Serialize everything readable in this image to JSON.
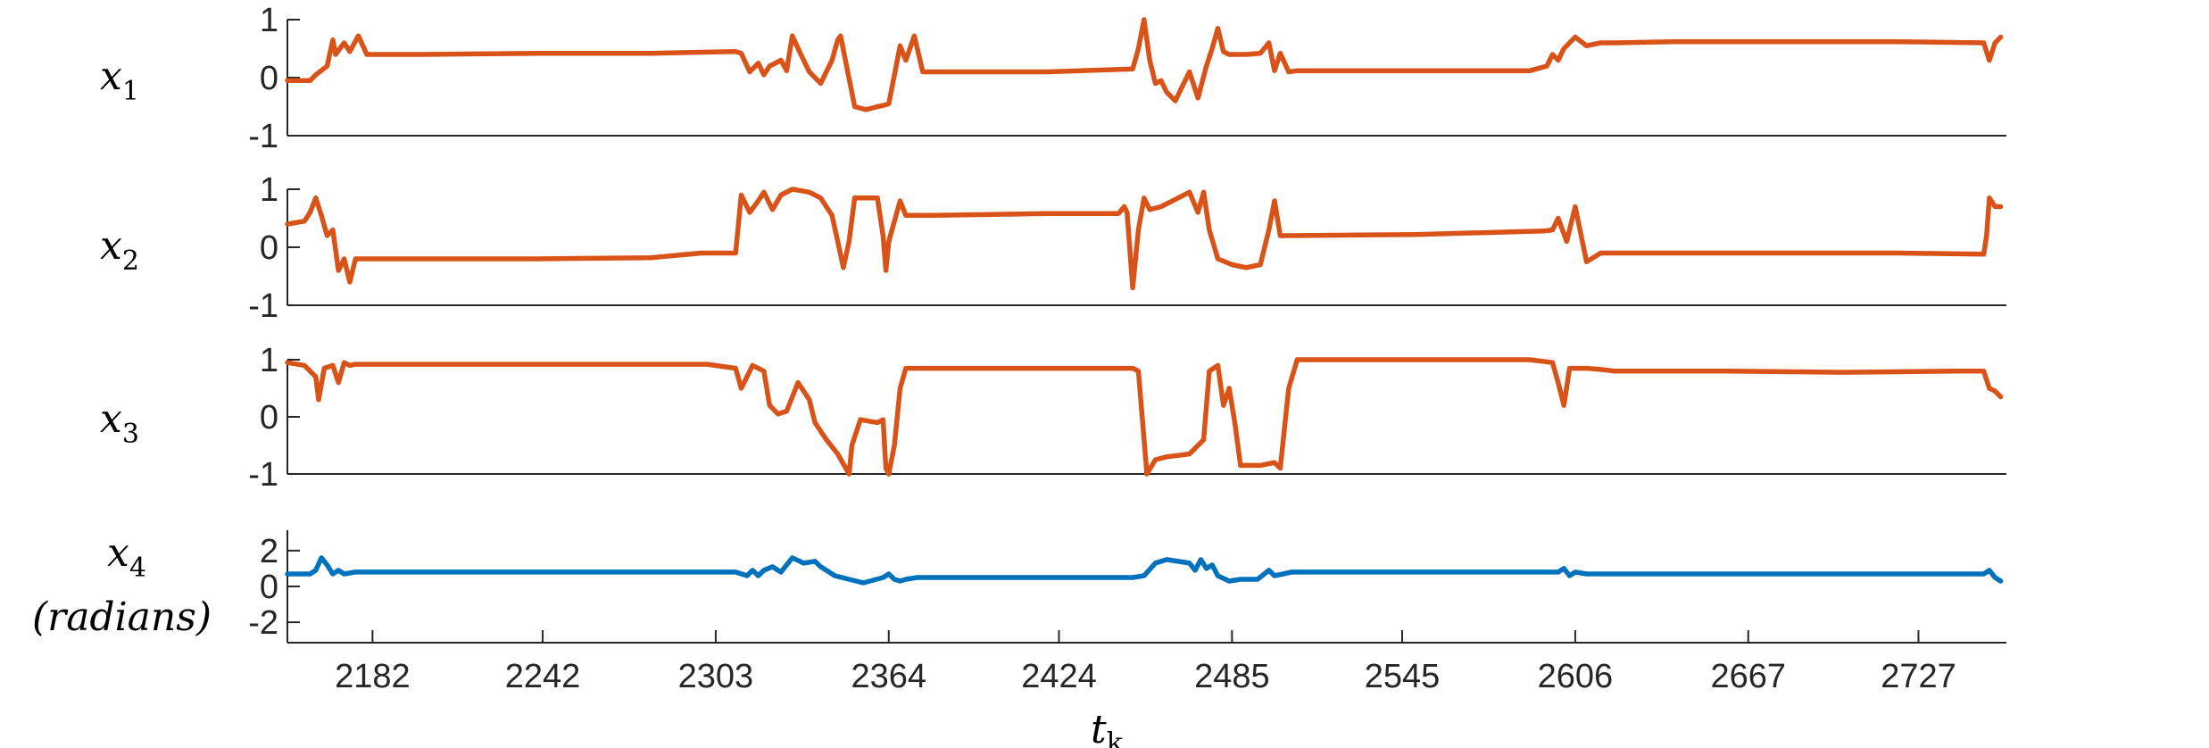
{
  "chart_data": [
    {
      "type": "line",
      "panel": "x1",
      "ylabel": "x",
      "ylabel_sub": "1",
      "ylim": [
        -1,
        1
      ],
      "yticks": [
        1,
        0,
        -1
      ],
      "ytick_labels": [
        "1",
        "0",
        "-1"
      ],
      "xlim": [
        2152,
        2758
      ],
      "color": "#D95319",
      "series": [
        {
          "x": [
            2152,
            2160,
            2162,
            2166,
            2168,
            2169,
            2172,
            2174,
            2177,
            2180,
            2200,
            2240,
            2280,
            2310,
            2312,
            2315,
            2318,
            2320,
            2322,
            2326,
            2328,
            2330,
            2333,
            2336,
            2340,
            2344,
            2346,
            2347,
            2352,
            2356,
            2360,
            2362,
            2364,
            2368,
            2370,
            2373,
            2376,
            2380,
            2420,
            2450,
            2452,
            2454,
            2456,
            2458,
            2460,
            2462,
            2465,
            2467,
            2470,
            2473,
            2476,
            2478,
            2480,
            2482,
            2484,
            2485,
            2490,
            2495,
            2498,
            2500,
            2502,
            2505,
            2508,
            2550,
            2590,
            2596,
            2598,
            2600,
            2602,
            2606,
            2610,
            2615,
            2620,
            2640,
            2680,
            2720,
            2750,
            2752,
            2754,
            2756
          ],
          "y": [
            -0.05,
            -0.05,
            0.05,
            0.2,
            0.65,
            0.4,
            0.6,
            0.45,
            0.72,
            0.4,
            0.4,
            0.42,
            0.42,
            0.45,
            0.42,
            0.1,
            0.25,
            0.05,
            0.2,
            0.3,
            0.12,
            0.72,
            0.4,
            0.1,
            -0.1,
            0.3,
            0.65,
            0.72,
            -0.5,
            -0.55,
            -0.5,
            -0.48,
            -0.45,
            0.55,
            0.3,
            0.72,
            0.1,
            0.1,
            0.1,
            0.15,
            0.5,
            1.0,
            0.3,
            -0.1,
            -0.05,
            -0.25,
            -0.4,
            -0.2,
            0.1,
            -0.35,
            0.2,
            0.5,
            0.85,
            0.45,
            0.4,
            0.4,
            0.4,
            0.42,
            0.6,
            0.12,
            0.42,
            0.1,
            0.12,
            0.12,
            0.12,
            0.2,
            0.4,
            0.3,
            0.5,
            0.7,
            0.55,
            0.6,
            0.6,
            0.62,
            0.62,
            0.62,
            0.6,
            0.3,
            0.6,
            0.7
          ]
        }
      ]
    },
    {
      "type": "line",
      "panel": "x2",
      "ylabel": "x",
      "ylabel_sub": "2",
      "ylim": [
        -1,
        1
      ],
      "yticks": [
        1,
        0,
        -1
      ],
      "ytick_labels": [
        "1",
        "0",
        "-1"
      ],
      "xlim": [
        2152,
        2758
      ],
      "color": "#D95319",
      "series": [
        {
          "x": [
            2152,
            2158,
            2160,
            2162,
            2164,
            2166,
            2168,
            2170,
            2172,
            2174,
            2176,
            2180,
            2200,
            2240,
            2280,
            2298,
            2310,
            2312,
            2315,
            2318,
            2320,
            2323,
            2326,
            2330,
            2336,
            2340,
            2344,
            2346,
            2348,
            2350,
            2352,
            2356,
            2360,
            2362,
            2363,
            2364,
            2368,
            2370,
            2380,
            2420,
            2445,
            2447,
            2448,
            2450,
            2452,
            2454,
            2456,
            2460,
            2466,
            2470,
            2473,
            2475,
            2477,
            2480,
            2485,
            2490,
            2495,
            2498,
            2500,
            2502,
            2504,
            2550,
            2595,
            2598,
            2600,
            2603,
            2606,
            2610,
            2615,
            2620,
            2640,
            2680,
            2720,
            2750,
            2751,
            2752,
            2754,
            2756
          ],
          "y": [
            0.4,
            0.45,
            0.6,
            0.85,
            0.55,
            0.2,
            0.3,
            -0.4,
            -0.2,
            -0.6,
            -0.2,
            -0.2,
            -0.2,
            -0.2,
            -0.18,
            -0.1,
            -0.1,
            0.9,
            0.6,
            0.8,
            0.95,
            0.65,
            0.9,
            1.0,
            0.95,
            0.85,
            0.55,
            0.1,
            -0.35,
            0.1,
            0.85,
            0.85,
            0.85,
            0.2,
            -0.4,
            0.1,
            0.8,
            0.55,
            0.55,
            0.58,
            0.58,
            0.7,
            0.6,
            -0.7,
            0.3,
            0.85,
            0.65,
            0.7,
            0.85,
            0.95,
            0.6,
            0.95,
            0.3,
            -0.2,
            -0.3,
            -0.35,
            -0.3,
            0.3,
            0.8,
            0.2,
            0.2,
            0.22,
            0.28,
            0.3,
            0.5,
            0.1,
            0.7,
            -0.25,
            -0.1,
            -0.1,
            -0.1,
            -0.1,
            -0.1,
            -0.12,
            0.2,
            0.85,
            0.7,
            0.7
          ]
        }
      ]
    },
    {
      "type": "line",
      "panel": "x3",
      "ylabel": "x",
      "ylabel_sub": "3",
      "ylim": [
        -1,
        1
      ],
      "yticks": [
        1,
        0,
        -1
      ],
      "ytick_labels": [
        "1",
        "0",
        "-1"
      ],
      "xlim": [
        2152,
        2758
      ],
      "color": "#D95319",
      "series": [
        {
          "x": [
            2152,
            2158,
            2162,
            2163,
            2165,
            2168,
            2170,
            2172,
            2174,
            2176,
            2180,
            2220,
            2260,
            2300,
            2310,
            2312,
            2316,
            2320,
            2322,
            2325,
            2328,
            2332,
            2336,
            2338,
            2342,
            2346,
            2350,
            2351,
            2354,
            2360,
            2362,
            2363,
            2364,
            2366,
            2368,
            2370,
            2380,
            2420,
            2450,
            2452,
            2455,
            2458,
            2462,
            2470,
            2475,
            2477,
            2480,
            2482,
            2484,
            2486,
            2488,
            2490,
            2495,
            2500,
            2502,
            2505,
            2508,
            2510,
            2550,
            2590,
            2598,
            2600,
            2602,
            2604,
            2606,
            2610,
            2615,
            2620,
            2660,
            2700,
            2740,
            2750,
            2752,
            2754,
            2756
          ],
          "y": [
            0.95,
            0.9,
            0.7,
            0.3,
            0.85,
            0.9,
            0.6,
            0.95,
            0.9,
            0.92,
            0.92,
            0.92,
            0.92,
            0.92,
            0.85,
            0.5,
            0.9,
            0.8,
            0.2,
            0.05,
            0.1,
            0.6,
            0.3,
            -0.1,
            -0.4,
            -0.65,
            -1.0,
            -0.5,
            -0.05,
            -0.1,
            -0.05,
            -0.9,
            -1.0,
            -0.5,
            0.5,
            0.85,
            0.85,
            0.85,
            0.85,
            0.8,
            -1.0,
            -0.75,
            -0.7,
            -0.65,
            -0.4,
            0.8,
            0.9,
            0.2,
            0.5,
            -0.1,
            -0.85,
            -0.85,
            -0.85,
            -0.8,
            -0.9,
            0.5,
            1.0,
            1.0,
            1.0,
            1.0,
            0.95,
            0.6,
            0.2,
            0.85,
            0.85,
            0.85,
            0.83,
            0.8,
            0.8,
            0.78,
            0.8,
            0.8,
            0.5,
            0.45,
            0.35
          ]
        }
      ]
    },
    {
      "type": "line",
      "panel": "x4",
      "ylabel": "x",
      "ylabel_sub": "4",
      "ylabel_line2": "(radians)",
      "ylim": [
        -3.14,
        3.14
      ],
      "yticks": [
        2,
        0,
        -2
      ],
      "ytick_labels": [
        "2",
        "0",
        "-2"
      ],
      "xlim": [
        2152,
        2758
      ],
      "color": "#0072BD",
      "series": [
        {
          "x": [
            2152,
            2160,
            2162,
            2164,
            2166,
            2168,
            2170,
            2172,
            2176,
            2200,
            2250,
            2300,
            2310,
            2314,
            2316,
            2318,
            2320,
            2323,
            2326,
            2330,
            2334,
            2338,
            2340,
            2345,
            2350,
            2355,
            2362,
            2364,
            2366,
            2368,
            2370,
            2374,
            2380,
            2420,
            2450,
            2454,
            2458,
            2462,
            2466,
            2470,
            2472,
            2474,
            2476,
            2478,
            2480,
            2484,
            2488,
            2494,
            2498,
            2500,
            2503,
            2506,
            2510,
            2550,
            2600,
            2602,
            2604,
            2606,
            2610,
            2620,
            2680,
            2740,
            2750,
            2752,
            2754,
            2756
          ],
          "y": [
            0.7,
            0.7,
            0.9,
            1.6,
            1.2,
            0.7,
            0.9,
            0.7,
            0.8,
            0.8,
            0.8,
            0.8,
            0.8,
            0.6,
            0.9,
            0.6,
            0.9,
            1.1,
            0.8,
            1.6,
            1.3,
            1.4,
            1.1,
            0.6,
            0.4,
            0.2,
            0.5,
            0.7,
            0.4,
            0.3,
            0.4,
            0.5,
            0.5,
            0.5,
            0.5,
            0.6,
            1.3,
            1.5,
            1.4,
            1.3,
            0.9,
            1.5,
            1.0,
            1.2,
            0.6,
            0.3,
            0.4,
            0.4,
            0.9,
            0.6,
            0.7,
            0.8,
            0.8,
            0.8,
            0.8,
            1.0,
            0.6,
            0.8,
            0.7,
            0.7,
            0.7,
            0.7,
            0.7,
            0.9,
            0.5,
            0.3
          ]
        }
      ]
    },
    {
      "type": "axis",
      "panel": "shared-x",
      "xlabel": "t",
      "xlabel_sub": "k",
      "xticks": [
        2182,
        2242,
        2303,
        2364,
        2424,
        2485,
        2545,
        2606,
        2667,
        2727
      ],
      "xtick_labels": [
        "2182",
        "2242",
        "2303",
        "2364",
        "2424",
        "2485",
        "2545",
        "2606",
        "2667",
        "2727"
      ]
    }
  ]
}
